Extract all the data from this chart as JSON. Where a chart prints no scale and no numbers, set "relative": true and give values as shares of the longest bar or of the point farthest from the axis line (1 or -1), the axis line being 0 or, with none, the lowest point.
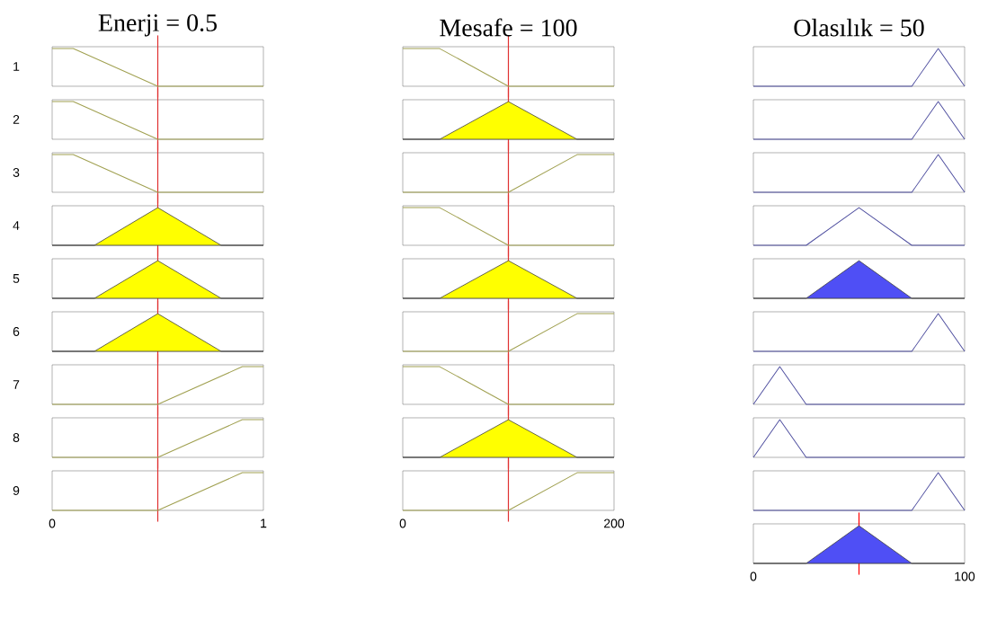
{
  "chart_data": [
    {
      "type": "line",
      "title": "Enerji = 0.5",
      "ylabel": "1",
      "relative": true,
      "x": [
        0,
        0.1,
        0.5,
        1
      ],
      "values": [
        1,
        1,
        0,
        0
      ],
      "color": "#a0a050",
      "xlim": [
        0,
        1
      ],
      "tick_labels": false,
      "ref_lines": [
        {
          "axis": "x",
          "value": 0.5,
          "color": "#e03030"
        }
      ]
    },
    {
      "type": "line",
      "title": "Mesafe = 100",
      "relative": true,
      "x": [
        0,
        35,
        100,
        200
      ],
      "values": [
        1,
        1,
        0,
        0
      ],
      "color": "#a0a050",
      "xlim": [
        0,
        200
      ],
      "tick_labels": false,
      "ref_lines": [
        {
          "axis": "x",
          "value": 100,
          "color": "#e03030"
        }
      ]
    },
    {
      "type": "line",
      "title": "Olasılık = 50",
      "relative": true,
      "x": [
        0,
        75,
        87.5,
        100
      ],
      "values": [
        0,
        0,
        1,
        0
      ],
      "color": "#5050a0",
      "xlim": [
        0,
        100
      ],
      "tick_labels": false
    },
    {
      "type": "line",
      "ylabel": "2",
      "relative": true,
      "x": [
        0,
        0.1,
        0.5,
        1
      ],
      "values": [
        1,
        1,
        0,
        0
      ],
      "color": "#a0a050",
      "xlim": [
        0,
        1
      ],
      "tick_labels": false,
      "ref_lines": [
        {
          "axis": "x",
          "value": 0.5,
          "color": "#e03030"
        }
      ]
    },
    {
      "type": "area",
      "relative": true,
      "x": [
        0,
        35,
        100,
        165,
        200
      ],
      "values": [
        0,
        0,
        1,
        0,
        0
      ],
      "color": "#ffff00",
      "xlim": [
        0,
        200
      ],
      "tick_labels": false,
      "ref_lines": [
        {
          "axis": "x",
          "value": 100,
          "color": "#e03030"
        }
      ]
    },
    {
      "type": "line",
      "relative": true,
      "x": [
        0,
        75,
        87.5,
        100
      ],
      "values": [
        0,
        0,
        1,
        0
      ],
      "color": "#5050a0",
      "xlim": [
        0,
        100
      ],
      "tick_labels": false
    },
    {
      "type": "line",
      "ylabel": "3",
      "relative": true,
      "x": [
        0,
        0.1,
        0.5,
        1
      ],
      "values": [
        1,
        1,
        0,
        0
      ],
      "color": "#a0a050",
      "xlim": [
        0,
        1
      ],
      "tick_labels": false,
      "ref_lines": [
        {
          "axis": "x",
          "value": 0.5,
          "color": "#e03030"
        }
      ]
    },
    {
      "type": "line",
      "relative": true,
      "x": [
        0,
        100,
        165,
        200
      ],
      "values": [
        0,
        0,
        1,
        1
      ],
      "color": "#a0a050",
      "xlim": [
        0,
        200
      ],
      "tick_labels": false,
      "ref_lines": [
        {
          "axis": "x",
          "value": 100,
          "color": "#e03030"
        }
      ]
    },
    {
      "type": "line",
      "relative": true,
      "x": [
        0,
        75,
        87.5,
        100
      ],
      "values": [
        0,
        0,
        1,
        0
      ],
      "color": "#5050a0",
      "xlim": [
        0,
        100
      ],
      "tick_labels": false
    },
    {
      "type": "area",
      "ylabel": "4",
      "relative": true,
      "x": [
        0,
        0.2,
        0.5,
        0.8,
        1
      ],
      "values": [
        0,
        0,
        1,
        0,
        0
      ],
      "color": "#ffff00",
      "xlim": [
        0,
        1
      ],
      "tick_labels": false,
      "ref_lines": [
        {
          "axis": "x",
          "value": 0.5,
          "color": "#e03030"
        }
      ]
    },
    {
      "type": "line",
      "relative": true,
      "x": [
        0,
        35,
        100,
        200
      ],
      "values": [
        1,
        1,
        0,
        0
      ],
      "color": "#a0a050",
      "xlim": [
        0,
        200
      ],
      "tick_labels": false,
      "ref_lines": [
        {
          "axis": "x",
          "value": 100,
          "color": "#e03030"
        }
      ]
    },
    {
      "type": "line",
      "relative": true,
      "x": [
        0,
        25,
        50,
        75,
        100
      ],
      "values": [
        0,
        0,
        1,
        0,
        0
      ],
      "color": "#5050a0",
      "xlim": [
        0,
        100
      ],
      "tick_labels": false
    },
    {
      "type": "area",
      "ylabel": "5",
      "relative": true,
      "x": [
        0,
        0.2,
        0.5,
        0.8,
        1
      ],
      "values": [
        0,
        0,
        1,
        0,
        0
      ],
      "color": "#ffff00",
      "xlim": [
        0,
        1
      ],
      "tick_labels": false,
      "ref_lines": [
        {
          "axis": "x",
          "value": 0.5,
          "color": "#e03030"
        }
      ]
    },
    {
      "type": "area",
      "relative": true,
      "x": [
        0,
        35,
        100,
        165,
        200
      ],
      "values": [
        0,
        0,
        1,
        0,
        0
      ],
      "color": "#ffff00",
      "xlim": [
        0,
        200
      ],
      "tick_labels": false,
      "ref_lines": [
        {
          "axis": "x",
          "value": 100,
          "color": "#e03030"
        }
      ]
    },
    {
      "type": "area",
      "relative": true,
      "x": [
        0,
        25,
        50,
        75,
        100
      ],
      "values": [
        0,
        0,
        1,
        0,
        0
      ],
      "color": "#4f4ff5",
      "xlim": [
        0,
        100
      ],
      "tick_labels": false
    },
    {
      "type": "area",
      "ylabel": "6",
      "relative": true,
      "x": [
        0,
        0.2,
        0.5,
        0.8,
        1
      ],
      "values": [
        0,
        0,
        1,
        0,
        0
      ],
      "color": "#ffff00",
      "xlim": [
        0,
        1
      ],
      "tick_labels": false,
      "ref_lines": [
        {
          "axis": "x",
          "value": 0.5,
          "color": "#e03030"
        }
      ]
    },
    {
      "type": "line",
      "relative": true,
      "x": [
        0,
        100,
        165,
        200
      ],
      "values": [
        0,
        0,
        1,
        1
      ],
      "color": "#a0a050",
      "xlim": [
        0,
        200
      ],
      "tick_labels": false,
      "ref_lines": [
        {
          "axis": "x",
          "value": 100,
          "color": "#e03030"
        }
      ]
    },
    {
      "type": "line",
      "relative": true,
      "x": [
        0,
        75,
        87.5,
        100
      ],
      "values": [
        0,
        0,
        1,
        0
      ],
      "color": "#5050a0",
      "xlim": [
        0,
        100
      ],
      "tick_labels": false
    },
    {
      "type": "line",
      "ylabel": "7",
      "relative": true,
      "x": [
        0,
        0.5,
        0.9,
        1
      ],
      "values": [
        0,
        0,
        1,
        1
      ],
      "color": "#a0a050",
      "xlim": [
        0,
        1
      ],
      "tick_labels": false,
      "ref_lines": [
        {
          "axis": "x",
          "value": 0.5,
          "color": "#e03030"
        }
      ]
    },
    {
      "type": "line",
      "relative": true,
      "x": [
        0,
        35,
        100,
        200
      ],
      "values": [
        1,
        1,
        0,
        0
      ],
      "color": "#a0a050",
      "xlim": [
        0,
        200
      ],
      "tick_labels": false,
      "ref_lines": [
        {
          "axis": "x",
          "value": 100,
          "color": "#e03030"
        }
      ]
    },
    {
      "type": "line",
      "relative": true,
      "x": [
        0,
        12.5,
        25,
        100
      ],
      "values": [
        0,
        1,
        0,
        0
      ],
      "color": "#5050a0",
      "xlim": [
        0,
        100
      ],
      "tick_labels": false
    },
    {
      "type": "line",
      "ylabel": "8",
      "relative": true,
      "x": [
        0,
        0.5,
        0.9,
        1
      ],
      "values": [
        0,
        0,
        1,
        1
      ],
      "color": "#a0a050",
      "xlim": [
        0,
        1
      ],
      "tick_labels": false,
      "ref_lines": [
        {
          "axis": "x",
          "value": 0.5,
          "color": "#e03030"
        }
      ]
    },
    {
      "type": "area",
      "relative": true,
      "x": [
        0,
        35,
        100,
        165,
        200
      ],
      "values": [
        0,
        0,
        1,
        0,
        0
      ],
      "color": "#ffff00",
      "xlim": [
        0,
        200
      ],
      "tick_labels": false,
      "ref_lines": [
        {
          "axis": "x",
          "value": 100,
          "color": "#e03030"
        }
      ]
    },
    {
      "type": "line",
      "relative": true,
      "x": [
        0,
        12.5,
        25,
        100
      ],
      "values": [
        0,
        1,
        0,
        0
      ],
      "color": "#5050a0",
      "xlim": [
        0,
        100
      ],
      "tick_labels": false
    },
    {
      "type": "line",
      "ylabel": "9",
      "relative": true,
      "x": [
        0,
        0.5,
        0.9,
        1
      ],
      "values": [
        0,
        0,
        1,
        1
      ],
      "color": "#a0a050",
      "xlim": [
        0,
        1
      ],
      "xticks": [
        0,
        1
      ],
      "tick_labels": "x",
      "ref_lines": [
        {
          "axis": "x",
          "value": 0.5,
          "color": "#e03030"
        }
      ]
    },
    {
      "type": "line",
      "relative": true,
      "x": [
        0,
        100,
        165,
        200
      ],
      "values": [
        0,
        0,
        1,
        1
      ],
      "color": "#a0a050",
      "xlim": [
        0,
        200
      ],
      "xticks": [
        0,
        200
      ],
      "tick_labels": "x",
      "ref_lines": [
        {
          "axis": "x",
          "value": 100,
          "color": "#e03030"
        }
      ]
    },
    {
      "type": "line",
      "relative": true,
      "x": [
        0,
        75,
        87.5,
        100
      ],
      "values": [
        0,
        0,
        1,
        0
      ],
      "color": "#5050a0",
      "xlim": [
        0,
        100
      ],
      "tick_labels": false
    },
    {
      "type": "area",
      "relative": true,
      "x": [
        0,
        25,
        50,
        75,
        100
      ],
      "values": [
        0,
        0,
        1,
        0,
        0
      ],
      "color": "#4f4ff5",
      "xlim": [
        0,
        100
      ],
      "xticks": [
        0,
        100
      ],
      "tick_labels": "x",
      "ref_lines": [
        {
          "axis": "x",
          "value": 50,
          "color": "#ff0000"
        }
      ]
    }
  ]
}
